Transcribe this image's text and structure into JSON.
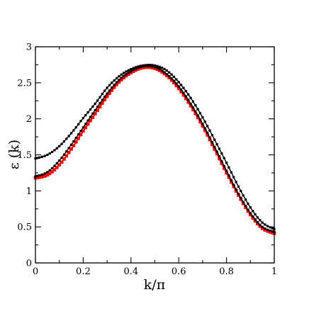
{
  "chart_data": {
    "type": "scatter",
    "title": "",
    "xlabel": "k/π",
    "ylabel": "ε (k)",
    "xlim": [
      0,
      1
    ],
    "ylim": [
      0,
      3
    ],
    "x_ticks": [
      0,
      0.2,
      0.4,
      0.6,
      0.8,
      1
    ],
    "x_tick_labels": [
      "0",
      "0.2",
      "0.4",
      "0.6",
      "0.8",
      "1"
    ],
    "y_ticks": [
      0,
      0.5,
      1,
      1.5,
      2,
      2.5,
      3
    ],
    "y_tick_labels": [
      "0",
      "0.5",
      "1",
      "1.5",
      "2",
      "2.5",
      "3"
    ],
    "grid": false,
    "legend": "none",
    "series": [
      {
        "color": "#000000",
        "marker": "small-square",
        "x": [
          0,
          0.05,
          0.1,
          0.15,
          0.2,
          0.25,
          0.3,
          0.35,
          0.4,
          0.45,
          0.5,
          0.55,
          0.6,
          0.65,
          0.7,
          0.75,
          0.8,
          0.85,
          0.9,
          0.95,
          1.0
        ],
        "y": [
          1.45,
          1.5,
          1.62,
          1.8,
          2.01,
          2.21,
          2.43,
          2.59,
          2.69,
          2.74,
          2.74,
          2.67,
          2.51,
          2.29,
          2.02,
          1.71,
          1.39,
          1.06,
          0.77,
          0.56,
          0.47
        ]
      },
      {
        "color": "#000000",
        "marker": "small-square",
        "x": [
          0,
          0.05,
          0.1,
          0.15,
          0.2,
          0.25,
          0.3,
          0.35,
          0.4,
          0.45,
          0.5,
          0.55,
          0.6,
          0.65,
          0.7,
          0.75,
          0.8,
          0.85,
          0.9,
          0.95,
          1.0
        ],
        "y": [
          1.2,
          1.26,
          1.42,
          1.64,
          1.88,
          2.12,
          2.35,
          2.54,
          2.66,
          2.73,
          2.72,
          2.62,
          2.45,
          2.21,
          1.93,
          1.61,
          1.28,
          0.96,
          0.69,
          0.5,
          0.43
        ]
      },
      {
        "color": "#ff0000",
        "marker": "square",
        "x": [
          0,
          0.05,
          0.1,
          0.15,
          0.2,
          0.25,
          0.3,
          0.35,
          0.4,
          0.45,
          0.5,
          0.55,
          0.6,
          0.65,
          0.7,
          0.75,
          0.8,
          0.85,
          0.9,
          0.95,
          1.0
        ],
        "y": [
          1.18,
          1.22,
          1.36,
          1.58,
          1.83,
          2.07,
          2.31,
          2.51,
          2.64,
          2.71,
          2.7,
          2.6,
          2.42,
          2.18,
          1.9,
          1.58,
          1.25,
          0.94,
          0.67,
          0.48,
          0.41
        ]
      }
    ]
  }
}
